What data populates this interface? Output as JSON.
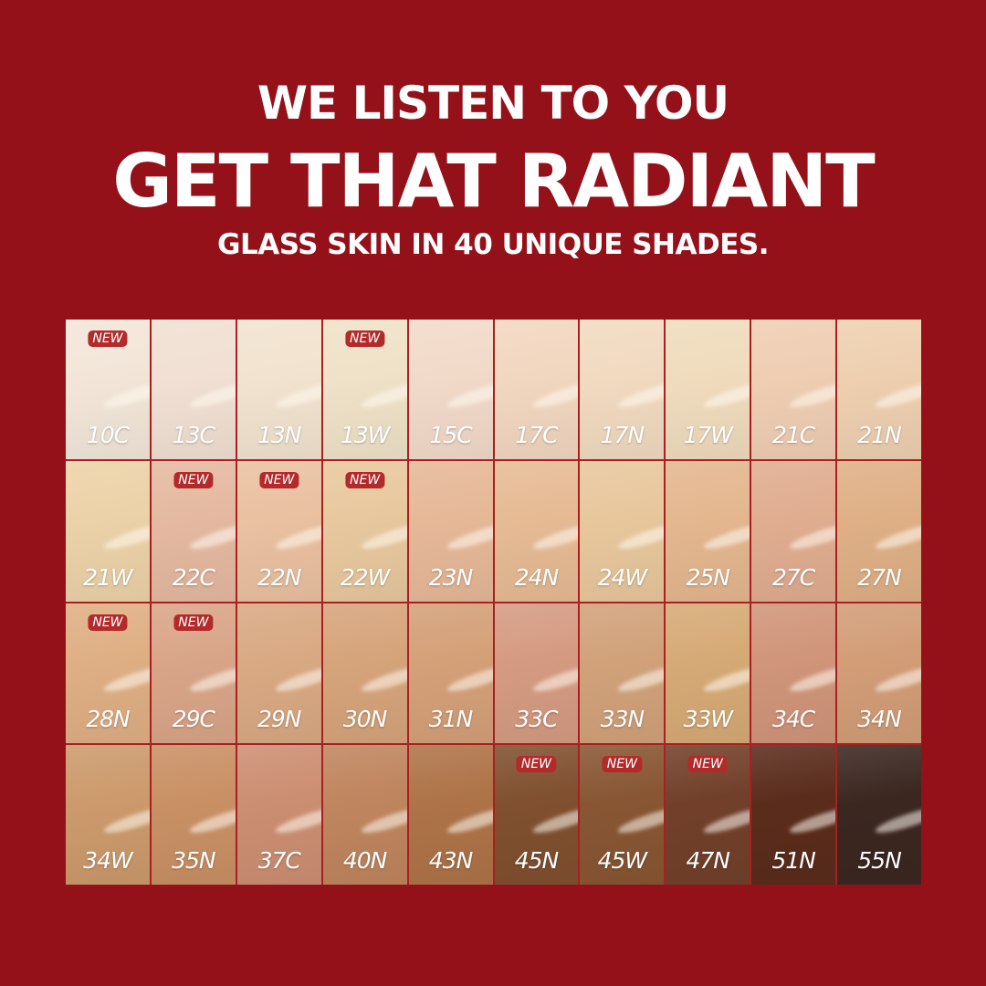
{
  "header": {
    "line1": "WE LISTEN TO YOU",
    "line2": "GET THAT RADIANT",
    "line3": "GLASS SKIN IN 40 UNIQUE SHADES."
  },
  "badge_label": "NEW",
  "colors": {
    "background": "#94111a",
    "badge": "#b42a2a"
  },
  "shades": [
    {
      "name": "10C",
      "color": "#f3e6d9",
      "new": true
    },
    {
      "name": "13C",
      "color": "#f1e0d3",
      "new": false
    },
    {
      "name": "13N",
      "color": "#f1e3cf",
      "new": false
    },
    {
      "name": "13W",
      "color": "#efe2c8",
      "new": true
    },
    {
      "name": "15C",
      "color": "#f2dac9",
      "new": false
    },
    {
      "name": "17C",
      "color": "#f2d7c0",
      "new": false
    },
    {
      "name": "17N",
      "color": "#f1dac0",
      "new": false
    },
    {
      "name": "17W",
      "color": "#f0dcbd",
      "new": false
    },
    {
      "name": "21C",
      "color": "#efceb3",
      "new": false
    },
    {
      "name": "21N",
      "color": "#eed0b0",
      "new": false
    },
    {
      "name": "21W",
      "color": "#ecd2a8",
      "new": false
    },
    {
      "name": "22C",
      "color": "#e5b9a1",
      "new": true
    },
    {
      "name": "22N",
      "color": "#eac1a1",
      "new": true
    },
    {
      "name": "22W",
      "color": "#e8c89e",
      "new": true
    },
    {
      "name": "23N",
      "color": "#e6b898",
      "new": false
    },
    {
      "name": "24N",
      "color": "#e6bb94",
      "new": false
    },
    {
      "name": "24W",
      "color": "#e8c79c",
      "new": false
    },
    {
      "name": "25N",
      "color": "#e4b78f",
      "new": false
    },
    {
      "name": "27C",
      "color": "#e0ad90",
      "new": false
    },
    {
      "name": "27N",
      "color": "#dfb086",
      "new": false
    },
    {
      "name": "28N",
      "color": "#dfaf84",
      "new": true
    },
    {
      "name": "29C",
      "color": "#d9a588",
      "new": true
    },
    {
      "name": "29N",
      "color": "#d9a983",
      "new": false
    },
    {
      "name": "30N",
      "color": "#d6a47b",
      "new": false
    },
    {
      "name": "31N",
      "color": "#d4a078",
      "new": false
    },
    {
      "name": "33C",
      "color": "#d59b82",
      "new": false
    },
    {
      "name": "33N",
      "color": "#d1a27a",
      "new": false
    },
    {
      "name": "33W",
      "color": "#d6aa76",
      "new": false
    },
    {
      "name": "34C",
      "color": "#d0957a",
      "new": false
    },
    {
      "name": "34N",
      "color": "#d29d77",
      "new": false
    },
    {
      "name": "34W",
      "color": "#cc9a6c",
      "new": false
    },
    {
      "name": "35N",
      "color": "#c99065",
      "new": false
    },
    {
      "name": "37C",
      "color": "#cc8e72",
      "new": false
    },
    {
      "name": "40N",
      "color": "#bf855e",
      "new": false
    },
    {
      "name": "43N",
      "color": "#ae7348",
      "new": false
    },
    {
      "name": "45N",
      "color": "#80502f",
      "new": true
    },
    {
      "name": "45W",
      "color": "#885633",
      "new": true
    },
    {
      "name": "47N",
      "color": "#72402a",
      "new": true
    },
    {
      "name": "51N",
      "color": "#5a2c1c",
      "new": false
    },
    {
      "name": "55N",
      "color": "#3b2720",
      "new": false
    }
  ]
}
